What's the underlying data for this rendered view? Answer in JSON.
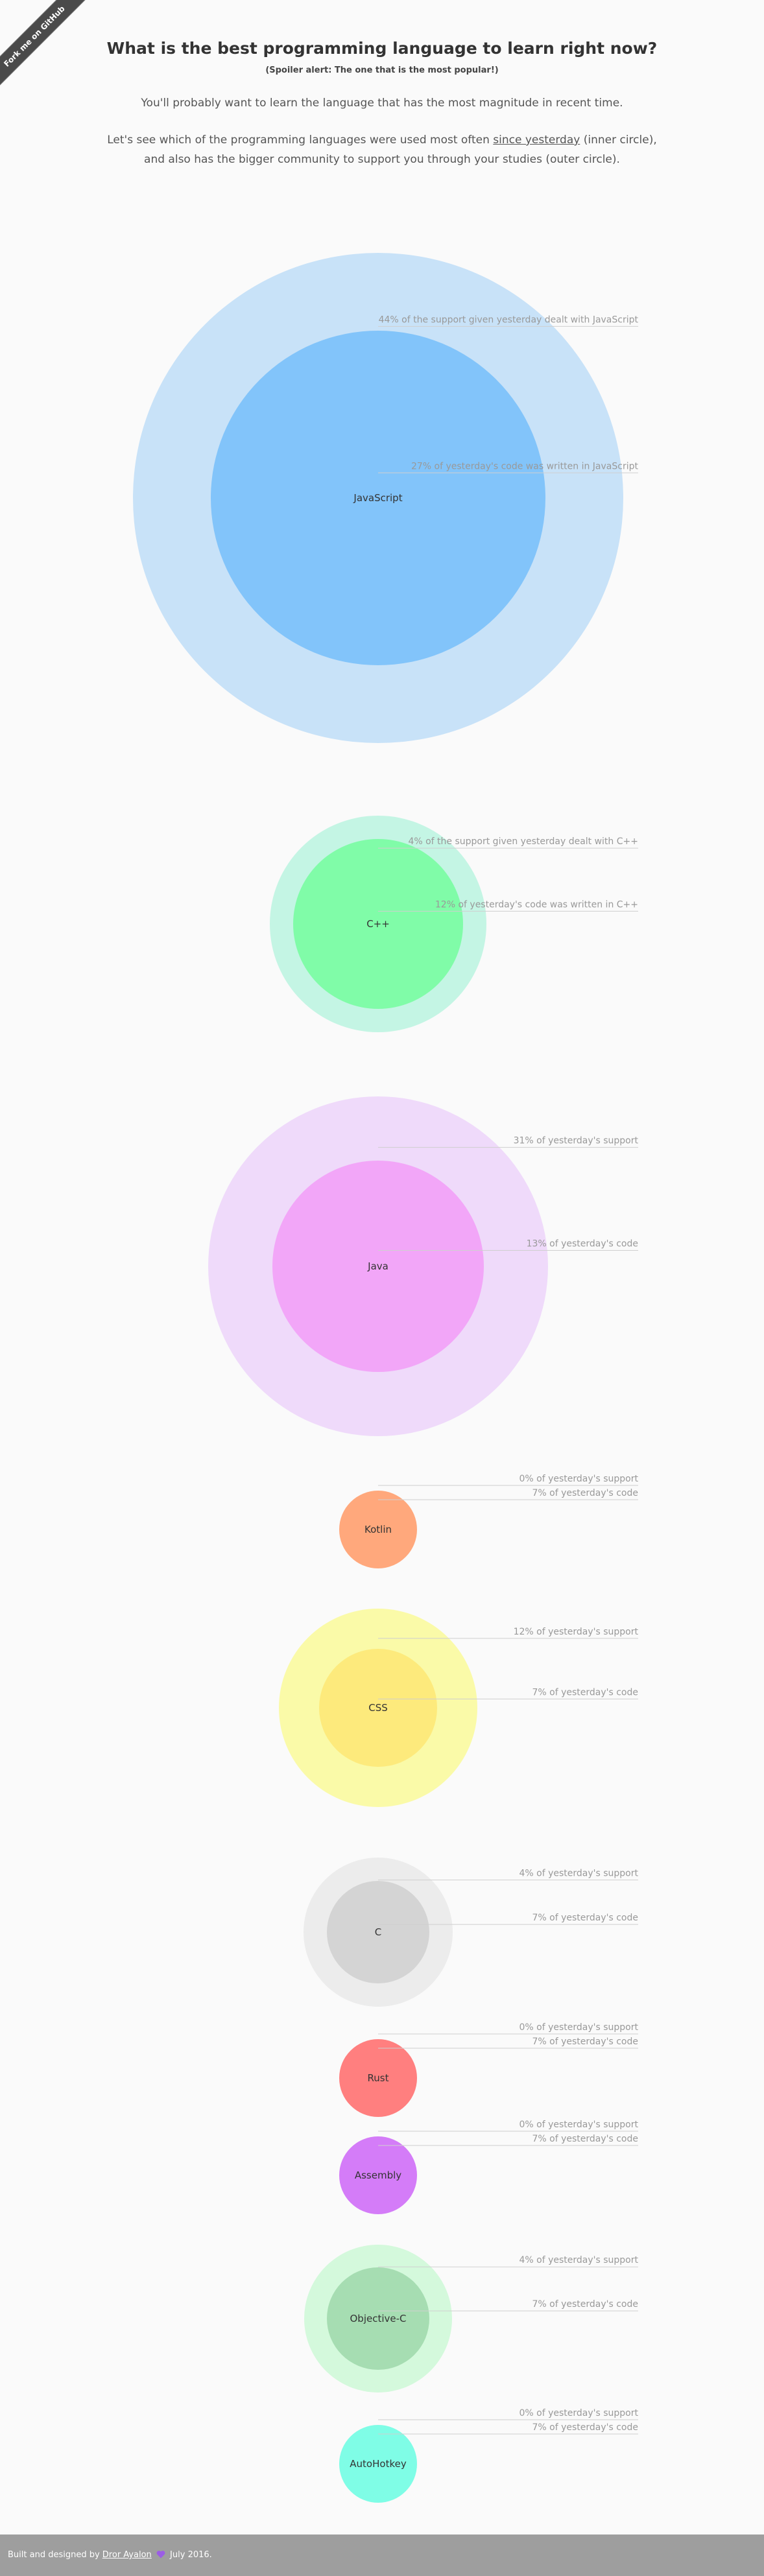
{
  "ribbon": {
    "label": "Fork me on GitHub"
  },
  "header": {
    "title": "What is the best programming language to learn right now?",
    "subtitle": "(Spoiler alert: The one that is the most popular!)",
    "intro": "You'll probably want to learn the language that has the most magnitude in recent time.",
    "desc_before_link": "Let's see which of the programming languages were used most often ",
    "desc_link": "since yesterday",
    "desc_after_link": " (inner circle),",
    "desc_line2": "and also has the bigger community to support you through your studies (outer circle)."
  },
  "footer": {
    "prefix": "Built and designed by ",
    "author": "Dror Ayalon",
    "suffix": " July 2016."
  },
  "colors": {
    "background": "#fafafa",
    "footer": "#9e9e9e",
    "label_text": "#999999",
    "heart": "#9b5de5"
  },
  "chart_data": {
    "type": "bubble",
    "description_inner": "share of yesterday's code",
    "description_outer": "share of yesterday's support",
    "items": [
      {
        "name": "JavaScript",
        "code_pct": 27,
        "support_pct": 44,
        "outer_label": "44% of the support given yesterday dealt with JavaScript",
        "inner_label": "27% of yesterday's code was written in JavaScript",
        "outer_color": "#c8e2f8",
        "inner_color": "#82c4fa"
      },
      {
        "name": "C++",
        "code_pct": 12,
        "support_pct": 4,
        "outer_label": "4% of the support given yesterday dealt with C++",
        "inner_label": "12% of yesterday's code was written in C++",
        "outer_color": "#c4f5e4",
        "inner_color": "#80fca8"
      },
      {
        "name": "Java",
        "code_pct": 13,
        "support_pct": 31,
        "outer_label": "31% of yesterday's support",
        "inner_label": "13% of yesterday's code",
        "outer_color": "#efdafa",
        "inner_color": "#f2a6f8"
      },
      {
        "name": "Kotlin",
        "code_pct": 7,
        "support_pct": 0,
        "outer_label": "0% of yesterday's support",
        "inner_label": "7% of yesterday's code",
        "outer_color": "#ffeadd",
        "inner_color": "#ffa87c"
      },
      {
        "name": "CSS",
        "code_pct": 7,
        "support_pct": 12,
        "outer_label": "12% of yesterday's support",
        "inner_label": "7% of yesterday's code",
        "outer_color": "#fafaa8",
        "inner_color": "#fdea7c"
      },
      {
        "name": "C",
        "code_pct": 7,
        "support_pct": 4,
        "outer_label": "4% of yesterday's support",
        "inner_label": "7% of yesterday's code",
        "outer_color": "#ececec",
        "inner_color": "#d4d4d4"
      },
      {
        "name": "Rust",
        "code_pct": 7,
        "support_pct": 0,
        "outer_label": "0% of yesterday's support",
        "inner_label": "7% of yesterday's code",
        "outer_color": "#ffd8d8",
        "inner_color": "#ff7f7f"
      },
      {
        "name": "Assembly",
        "code_pct": 7,
        "support_pct": 0,
        "outer_label": "0% of yesterday's support",
        "inner_label": "7% of yesterday's code",
        "outer_color": "#eed8ff",
        "inner_color": "#d47cf8"
      },
      {
        "name": "Objective-C",
        "code_pct": 7,
        "support_pct": 4,
        "outer_label": "4% of yesterday's support",
        "inner_label": "7% of yesterday's code",
        "outer_color": "#d4f9dc",
        "inner_color": "#a6ddb2"
      },
      {
        "name": "AutoHotkey",
        "code_pct": 7,
        "support_pct": 0,
        "outer_label": "0% of yesterday's support",
        "inner_label": "7% of yesterday's code",
        "outer_color": "#d8fff6",
        "inner_color": "#7ffde6"
      }
    ]
  }
}
